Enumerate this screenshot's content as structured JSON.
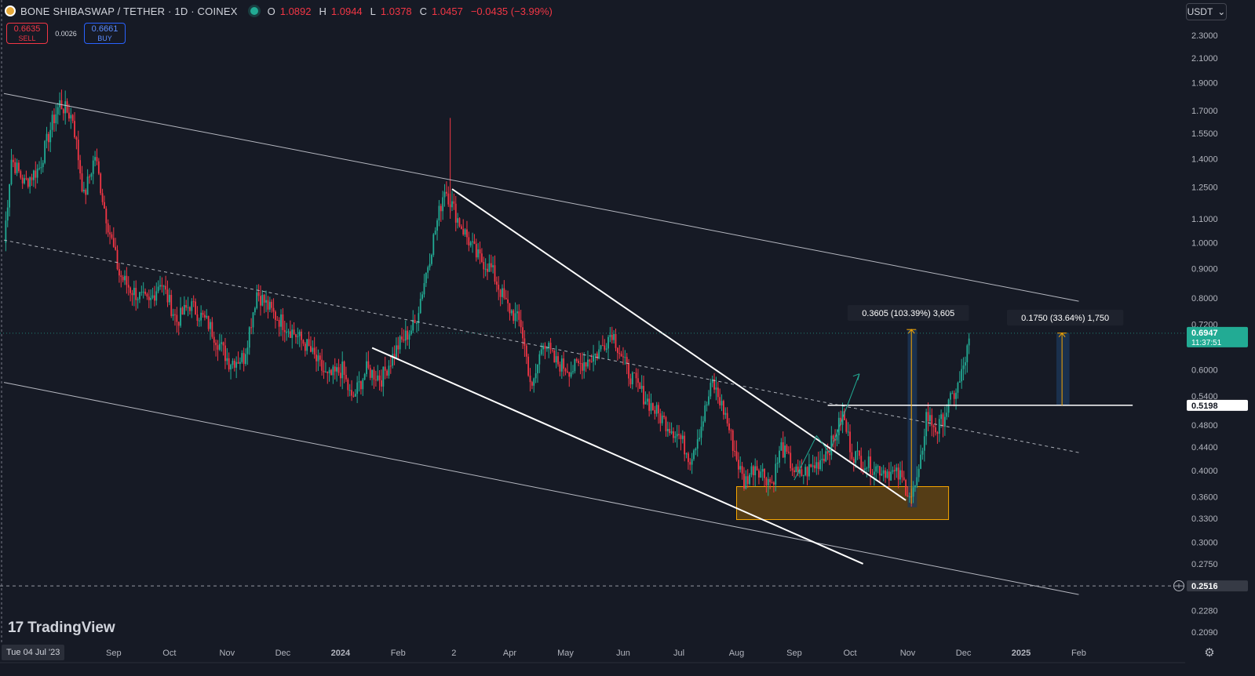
{
  "header": {
    "title": "BONE SHIBASWAP / TETHER · 1D · COINEX",
    "open_label": "O",
    "open": "1.0892",
    "high_label": "H",
    "high": "1.0944",
    "low_label": "L",
    "low": "1.0378",
    "close_label": "C",
    "close": "1.0457",
    "change": "−0.0435 (−3.99%)"
  },
  "trade": {
    "sell_price": "0.6635",
    "sell_label": "SELL",
    "spread": "0.0026",
    "buy_price": "0.6661",
    "buy_label": "BUY"
  },
  "currency": "USDT",
  "logo_text": "TradingView",
  "cursor_date": "Tue 04 Jul '23",
  "icons": [
    "symbol-icon",
    "live-status-icon",
    "chevron-down-icon",
    "tradingview-logo-icon",
    "gear-icon",
    "add-alert-plus-icon"
  ],
  "colors": {
    "background": "#161a25",
    "up": "#22ab94",
    "down": "#f23645",
    "text": "#b2b5be",
    "price_line": "#22ab94",
    "zone_fill": "#6b4a12",
    "zone_border": "#f7a600",
    "measure_fill": "#1c3a5e",
    "measure_arrow": "#f7a600",
    "trendline": "#d1d4dc"
  },
  "chart_data": {
    "type": "candlestick",
    "scale": "log",
    "x_range": [
      "2023-07-04",
      "2025-02-28"
    ],
    "y_range": [
      0.2,
      2.4
    ],
    "y_ticks": [
      "2.3000",
      "2.1000",
      "1.9000",
      "1.7000",
      "1.5500",
      "1.4000",
      "1.2500",
      "1.1000",
      "1.0000",
      "0.9000",
      "0.8000",
      "0.7200",
      "0.6000",
      "0.5400",
      "0.4800",
      "0.4400",
      "0.4000",
      "0.3600",
      "0.3300",
      "0.3000",
      "0.2750",
      "0.2516",
      "0.2280",
      "0.2090"
    ],
    "x_ticks": [
      {
        "label": "Sep",
        "date": "2023-09-01"
      },
      {
        "label": "Oct",
        "date": "2023-10-01"
      },
      {
        "label": "Nov",
        "date": "2023-11-01"
      },
      {
        "label": "Dec",
        "date": "2023-12-01"
      },
      {
        "label": "2024",
        "date": "2024-01-01"
      },
      {
        "label": "Feb",
        "date": "2024-02-01"
      },
      {
        "label": "2",
        "date": "2024-03-02"
      },
      {
        "label": "Apr",
        "date": "2024-04-01"
      },
      {
        "label": "May",
        "date": "2024-05-01"
      },
      {
        "label": "Jun",
        "date": "2024-06-01"
      },
      {
        "label": "Jul",
        "date": "2024-07-01"
      },
      {
        "label": "Aug",
        "date": "2024-08-01"
      },
      {
        "label": "Sep",
        "date": "2024-09-01"
      },
      {
        "label": "Oct",
        "date": "2024-10-01"
      },
      {
        "label": "Nov",
        "date": "2024-11-01"
      },
      {
        "label": "Dec",
        "date": "2024-12-01"
      },
      {
        "label": "2025",
        "date": "2025-01-01"
      },
      {
        "label": "Feb",
        "date": "2025-02-01"
      }
    ],
    "price_path": [
      [
        "2023-07-04",
        1.0
      ],
      [
        "2023-07-08",
        1.4
      ],
      [
        "2023-07-15",
        1.27
      ],
      [
        "2023-07-23",
        1.35
      ],
      [
        "2023-07-30",
        1.62
      ],
      [
        "2023-08-03",
        1.75
      ],
      [
        "2023-08-10",
        1.65
      ],
      [
        "2023-08-16",
        1.2
      ],
      [
        "2023-08-22",
        1.42
      ],
      [
        "2023-08-27",
        1.15
      ],
      [
        "2023-09-04",
        0.88
      ],
      [
        "2023-09-10",
        0.83
      ],
      [
        "2023-09-20",
        0.78
      ],
      [
        "2023-09-26",
        0.86
      ],
      [
        "2023-10-05",
        0.73
      ],
      [
        "2023-10-12",
        0.78
      ],
      [
        "2023-10-22",
        0.72
      ],
      [
        "2023-11-02",
        0.62
      ],
      [
        "2023-11-10",
        0.63
      ],
      [
        "2023-11-17",
        0.82
      ],
      [
        "2023-11-26",
        0.75
      ],
      [
        "2023-12-06",
        0.7
      ],
      [
        "2023-12-14",
        0.66
      ],
      [
        "2023-12-25",
        0.58
      ],
      [
        "2024-01-02",
        0.6
      ],
      [
        "2024-01-07",
        0.53
      ],
      [
        "2024-01-15",
        0.6
      ],
      [
        "2024-01-23",
        0.58
      ],
      [
        "2024-02-01",
        0.66
      ],
      [
        "2024-02-10",
        0.72
      ],
      [
        "2024-02-26",
        1.25
      ],
      [
        "2024-03-04",
        1.1
      ],
      [
        "2024-03-14",
        0.95
      ],
      [
        "2024-03-22",
        0.9
      ],
      [
        "2024-03-30",
        0.78
      ],
      [
        "2024-04-07",
        0.72
      ],
      [
        "2024-04-13",
        0.55
      ],
      [
        "2024-04-19",
        0.68
      ],
      [
        "2024-04-25",
        0.62
      ],
      [
        "2024-05-04",
        0.6
      ],
      [
        "2024-05-18",
        0.64
      ],
      [
        "2024-05-26",
        0.7
      ],
      [
        "2024-06-03",
        0.6
      ],
      [
        "2024-06-12",
        0.54
      ],
      [
        "2024-06-20",
        0.5
      ],
      [
        "2024-07-01",
        0.46
      ],
      [
        "2024-07-07",
        0.42
      ],
      [
        "2024-07-13",
        0.48
      ],
      [
        "2024-07-19",
        0.57
      ],
      [
        "2024-07-26",
        0.5
      ],
      [
        "2024-08-01",
        0.42
      ],
      [
        "2024-08-05",
        0.38
      ],
      [
        "2024-08-11",
        0.41
      ],
      [
        "2024-08-20",
        0.38
      ],
      [
        "2024-08-25",
        0.44
      ],
      [
        "2024-09-03",
        0.39
      ],
      [
        "2024-09-13",
        0.41
      ],
      [
        "2024-09-22",
        0.45
      ],
      [
        "2024-09-27",
        0.5
      ],
      [
        "2024-10-02",
        0.43
      ],
      [
        "2024-10-10",
        0.41
      ],
      [
        "2024-10-20",
        0.4
      ],
      [
        "2024-10-28",
        0.39
      ],
      [
        "2024-11-03",
        0.36
      ],
      [
        "2024-11-07",
        0.39
      ],
      [
        "2024-11-11",
        0.5
      ],
      [
        "2024-11-17",
        0.47
      ],
      [
        "2024-11-23",
        0.52
      ],
      [
        "2024-11-29",
        0.57
      ],
      [
        "2024-12-05",
        0.69
      ]
    ],
    "last_price": "0.6947",
    "countdown": "11:37:51",
    "horizontal_levels": [
      {
        "price": "0.5198",
        "style": "solid"
      },
      {
        "price": "0.2516",
        "style": "dashed"
      }
    ],
    "measurements": [
      {
        "label": "0.3605 (103.39%) 3,605"
      },
      {
        "label": "0.1750 (33.64%) 1,750"
      }
    ]
  }
}
